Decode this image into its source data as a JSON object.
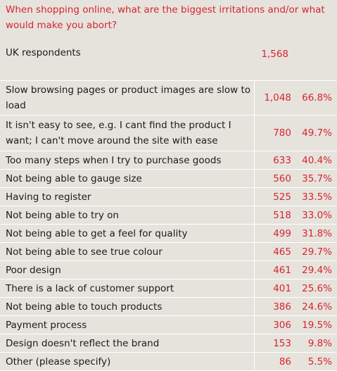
{
  "chart_data": {
    "type": "table",
    "title": "When shopping online, what are the biggest irritations and/or what would make you abort?",
    "base_label": "UK respondents",
    "base_count": "1,568",
    "rows": [
      {
        "label": "Slow browsing pages or product images are slow to load",
        "count": "1,048",
        "percent": "66.8%"
      },
      {
        "label": "It isn't easy to see, e.g. I cant find the product I want; I can't move around the site with ease",
        "count": "780",
        "percent": "49.7%"
      },
      {
        "label": "Too many steps when I try to purchase goods",
        "count": "633",
        "percent": "40.4%"
      },
      {
        "label": "Not being able to gauge size",
        "count": "560",
        "percent": "35.7%"
      },
      {
        "label": "Having to register",
        "count": "525",
        "percent": "33.5%"
      },
      {
        "label": "Not being able to try on",
        "count": "518",
        "percent": "33.0%"
      },
      {
        "label": "Not being able to get a feel for quality",
        "count": "499",
        "percent": "31.8%"
      },
      {
        "label": "Not being able to see true colour",
        "count": "465",
        "percent": "29.7%"
      },
      {
        "label": "Poor design",
        "count": "461",
        "percent": "29.4%"
      },
      {
        "label": "There is a lack of customer support",
        "count": "401",
        "percent": "25.6%"
      },
      {
        "label": "Not being able to touch products",
        "count": "386",
        "percent": "24.6%"
      },
      {
        "label": "Payment process",
        "count": "306",
        "percent": "19.5%"
      },
      {
        "label": "Design doesn't reflect the brand",
        "count": "153",
        "percent": "9.8%"
      },
      {
        "label": "Other (please specify)",
        "count": "86",
        "percent": "5.5%"
      }
    ]
  },
  "colors": {
    "accent": "#d6252e",
    "background": "#e6e3dd",
    "rule": "#ffffff"
  }
}
